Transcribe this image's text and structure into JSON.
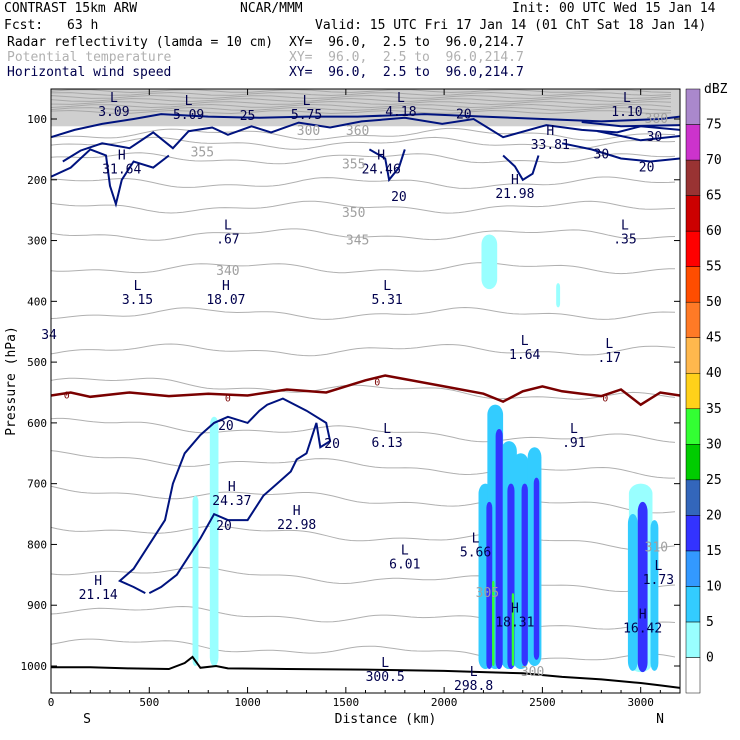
{
  "header": {
    "model": "CONTRAST 15km ARW",
    "org": "NCAR/MMM",
    "init": "Init: 00 UTC Wed 15 Jan 14",
    "fcst_label": "Fcst:",
    "fcst_value": "63 h",
    "valid": "Valid: 15 UTC Fri 17 Jan 14 (01 ChT Sat 18 Jan 14)",
    "fields": [
      {
        "name": "Radar reflectivity (lamda = 10 cm)",
        "xy": "XY=  96.0,  2.5 to  96.0,214.7",
        "color": "#000000"
      },
      {
        "name": "Potential temperature",
        "xy": "XY=  96.0,  2.5 to  96.0,214.7",
        "color": "#b0b0b0"
      },
      {
        "name": "Horizontal wind speed",
        "xy": "XY=  96.0,  2.5 to  96.0,214.7",
        "color": "#00004d"
      }
    ]
  },
  "chart_data": {
    "type": "cross-section",
    "xlabel": "Distance (km)",
    "ylabel": "Pressure (hPa)",
    "xlim": [
      0,
      3200
    ],
    "ylim": [
      1050,
      60
    ],
    "x_ticks": [
      0,
      500,
      1000,
      1500,
      2000,
      2500,
      3000
    ],
    "y_ticks": [
      100,
      200,
      300,
      400,
      500,
      600,
      700,
      800,
      900,
      1000
    ],
    "x_end_labels": {
      "left": "S",
      "right": "N"
    },
    "colorbar": {
      "unit": "dBZ",
      "levels": [
        0,
        5,
        10,
        15,
        20,
        25,
        30,
        35,
        40,
        45,
        50,
        55,
        60,
        65,
        70,
        75
      ],
      "colors": [
        "#ffffff",
        "#99ffff",
        "#33ccff",
        "#3399ff",
        "#3333ff",
        "#3366bb",
        "#00cc00",
        "#33ff33",
        "#ffd11a",
        "#ffb84d",
        "#ff7a26",
        "#ff4d00",
        "#ff0000",
        "#cc0000",
        "#993333",
        "#cc33cc",
        "#aa88cc"
      ]
    },
    "annotations": [
      {
        "type": "L",
        "value": "3.09",
        "x": 320,
        "p": 75
      },
      {
        "type": "L",
        "value": "5.09",
        "x": 700,
        "p": 80
      },
      {
        "type": "L",
        "value": "5.75",
        "x": 1300,
        "p": 80
      },
      {
        "type": "L",
        "value": "4.18",
        "x": 1780,
        "p": 75
      },
      {
        "type": "L",
        "value": "1.10",
        "x": 2930,
        "p": 75
      },
      {
        "type": "H",
        "value": "33.81",
        "x": 2540,
        "p": 130
      },
      {
        "type": "H",
        "value": "31.64",
        "x": 360,
        "p": 170
      },
      {
        "type": "H",
        "value": "24.46",
        "x": 1680,
        "p": 170
      },
      {
        "type": "H",
        "value": "21.98",
        "x": 2360,
        "p": 210
      },
      {
        "type": "L",
        "value": ".67",
        "x": 900,
        "p": 285
      },
      {
        "type": "L",
        "value": ".35",
        "x": 2920,
        "p": 285
      },
      {
        "type": "L",
        "value": "3.15",
        "x": 440,
        "p": 385
      },
      {
        "type": "H",
        "value": "18.07",
        "x": 890,
        "p": 385
      },
      {
        "type": "L",
        "value": "5.31",
        "x": 1710,
        "p": 385
      },
      {
        "type": "L",
        "value": "1.64",
        "x": 2410,
        "p": 475
      },
      {
        "type": "L",
        "value": ".17",
        "x": 2840,
        "p": 480
      },
      {
        "type": "L",
        "value": "6.13",
        "x": 1710,
        "p": 620
      },
      {
        "type": "L",
        "value": ".91",
        "x": 2660,
        "p": 620
      },
      {
        "type": "H",
        "value": "24.37",
        "x": 920,
        "p": 715
      },
      {
        "type": "H",
        "value": "22.98",
        "x": 1250,
        "p": 755
      },
      {
        "type": "L",
        "value": "5.66",
        "x": 2160,
        "p": 800
      },
      {
        "type": "L",
        "value": "6.01",
        "x": 1800,
        "p": 820
      },
      {
        "type": "L",
        "value": "1.73",
        "x": 3090,
        "p": 845
      },
      {
        "type": "H",
        "value": "21.14",
        "x": 240,
        "p": 870
      },
      {
        "type": "H",
        "value": "18.31",
        "x": 2360,
        "p": 915
      },
      {
        "type": "H",
        "value": "16.42",
        "x": 3010,
        "p": 925
      },
      {
        "type": "L",
        "value": "300.5",
        "x": 1700,
        "p": 1005
      },
      {
        "type": "L",
        "value": "298.8",
        "x": 2150,
        "p": 1020
      }
    ],
    "contour_labels": [
      {
        "text": "25",
        "color": "wind",
        "x": 1000,
        "p": 95
      },
      {
        "text": "20",
        "color": "wind",
        "x": 2100,
        "p": 93
      },
      {
        "text": "30",
        "color": "wind",
        "x": 2800,
        "p": 158
      },
      {
        "text": "30",
        "color": "wind",
        "x": 3070,
        "p": 130
      },
      {
        "text": "20",
        "color": "wind",
        "x": 3030,
        "p": 180
      },
      {
        "text": "20",
        "color": "wind",
        "x": 1770,
        "p": 228
      },
      {
        "text": "20",
        "color": "wind",
        "x": 890,
        "p": 605
      },
      {
        "text": "20",
        "color": "wind",
        "x": 1430,
        "p": 635
      },
      {
        "text": "20",
        "color": "wind",
        "x": 880,
        "p": 770
      },
      {
        "text": "380",
        "color": "theta",
        "x": 3080,
        "p": 100
      },
      {
        "text": "360",
        "color": "theta",
        "x": 1560,
        "p": 120
      },
      {
        "text": "300",
        "color": "theta",
        "x": 1310,
        "p": 120
      },
      {
        "text": "355",
        "color": "theta",
        "x": 770,
        "p": 155
      },
      {
        "text": "355",
        "color": "theta",
        "x": 1540,
        "p": 175
      },
      {
        "text": "350",
        "color": "theta",
        "x": 1540,
        "p": 255
      },
      {
        "text": "345",
        "color": "theta",
        "x": 1560,
        "p": 300
      },
      {
        "text": "340",
        "color": "theta",
        "x": 900,
        "p": 350
      },
      {
        "text": "305",
        "color": "theta",
        "x": 2220,
        "p": 880
      },
      {
        "text": "310",
        "color": "theta",
        "x": 3080,
        "p": 805
      },
      {
        "text": "300",
        "color": "theta",
        "x": 2450,
        "p": 1010
      },
      {
        "text": "0",
        "color": "freeze",
        "x": 900,
        "p": 558
      },
      {
        "text": "0",
        "color": "freeze",
        "x": 1660,
        "p": 532
      },
      {
        "text": "0",
        "color": "freeze",
        "x": 2820,
        "p": 558
      },
      {
        "text": "0",
        "color": "freeze",
        "x": 80,
        "p": 553
      },
      {
        "text": "34",
        "color": "wind",
        "x": -10,
        "p": 455
      }
    ],
    "freezing_level": {
      "x": [
        0,
        100,
        200,
        400,
        600,
        800,
        1000,
        1200,
        1400,
        1600,
        1700,
        1800,
        2000,
        2200,
        2300,
        2400,
        2500,
        2600,
        2700,
        2800,
        2900,
        3000,
        3100,
        3200
      ],
      "p": [
        555,
        550,
        557,
        550,
        556,
        552,
        555,
        545,
        550,
        530,
        522,
        528,
        540,
        552,
        565,
        548,
        540,
        548,
        552,
        556,
        545,
        570,
        550,
        555
      ]
    },
    "surface": {
      "x": [
        0,
        200,
        400,
        600,
        680,
        720,
        760,
        840,
        900,
        1200,
        1600,
        2000,
        2200,
        2400,
        2600,
        2800,
        3000,
        3100,
        3200
      ],
      "p": [
        1002,
        1002,
        1004,
        1005,
        995,
        985,
        1003,
        1000,
        1004,
        1005,
        1006,
        1008,
        1010,
        1012,
        1018,
        1022,
        1028,
        1032,
        1036
      ]
    }
  }
}
